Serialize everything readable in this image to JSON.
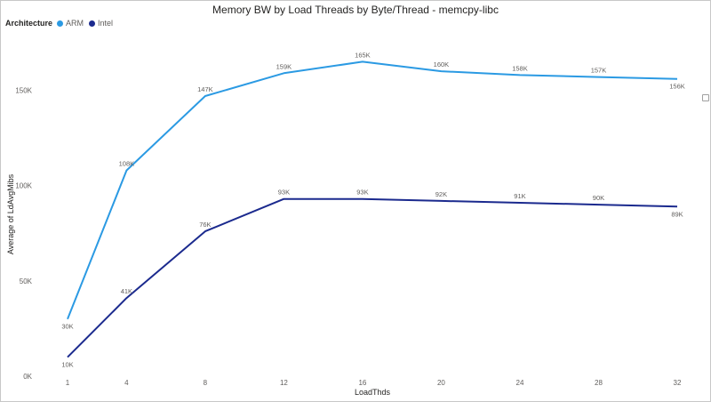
{
  "chart_data": {
    "type": "line",
    "title": "Memory BW by Load Threads by Byte/Thread - memcpy-libc",
    "xlabel": "LoadThds",
    "ylabel": "Average of LdAvgMibs",
    "legend_title": "Architecture",
    "legend_position": "top-left",
    "x": [
      1,
      4,
      8,
      12,
      16,
      20,
      24,
      28,
      32
    ],
    "x_tick_labels": [
      "1",
      "4",
      "8",
      "12",
      "16",
      "20",
      "24",
      "28",
      "32"
    ],
    "y_ticks": [
      0,
      50000,
      100000,
      150000
    ],
    "y_tick_labels": [
      "0K",
      "50K",
      "100K",
      "150K"
    ],
    "ylim": [
      0,
      175000
    ],
    "grid": false,
    "series": [
      {
        "name": "ARM",
        "color": "#2b9ae3",
        "values": [
          30000,
          108000,
          147000,
          159000,
          165000,
          160000,
          158000,
          157000,
          156000
        ],
        "data_labels": [
          "30K",
          "108K",
          "147K",
          "159K",
          "165K",
          "160K",
          "158K",
          "157K",
          "156K"
        ]
      },
      {
        "name": "Intel",
        "color": "#1b2a8e",
        "values": [
          10000,
          41000,
          76000,
          93000,
          93000,
          92000,
          91000,
          90000,
          89000
        ],
        "data_labels": [
          "10K",
          "41K",
          "76K",
          "93K",
          "93K",
          "92K",
          "91K",
          "90K",
          "89K"
        ]
      }
    ]
  }
}
